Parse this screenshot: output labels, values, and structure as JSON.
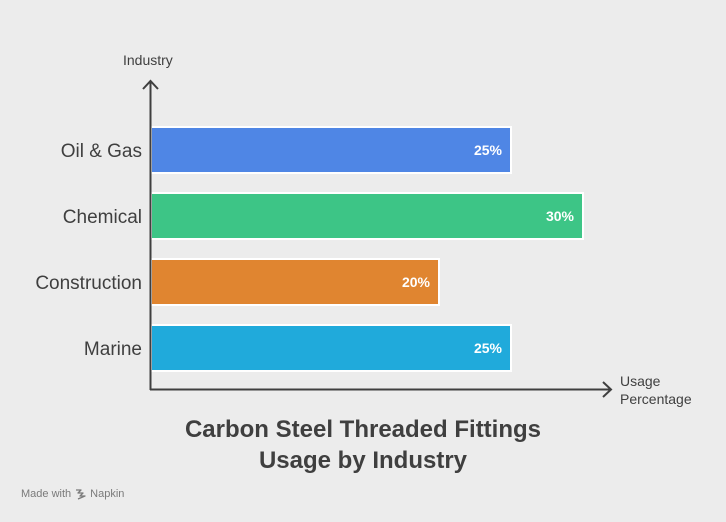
{
  "chart_data": {
    "type": "bar",
    "orientation": "horizontal",
    "title_line1": "Carbon Steel Threaded Fittings",
    "title_line2": "Usage by Industry",
    "xlabel_line1": "Usage",
    "xlabel_line2": "Percentage",
    "ylabel": "Industry",
    "categories": [
      "Oil & Gas",
      "Chemical",
      "Construction",
      "Marine"
    ],
    "values": [
      25,
      30,
      20,
      25
    ],
    "value_labels": [
      "25%",
      "30%",
      "20%",
      "25%"
    ],
    "colors": [
      "#4f86e5",
      "#3dc586",
      "#e08530",
      "#20aadb"
    ],
    "grid": false,
    "legend": "none"
  },
  "watermark": {
    "prefix": "Made with",
    "brand": "Napkin",
    "icon": "napkin-logo-icon"
  }
}
